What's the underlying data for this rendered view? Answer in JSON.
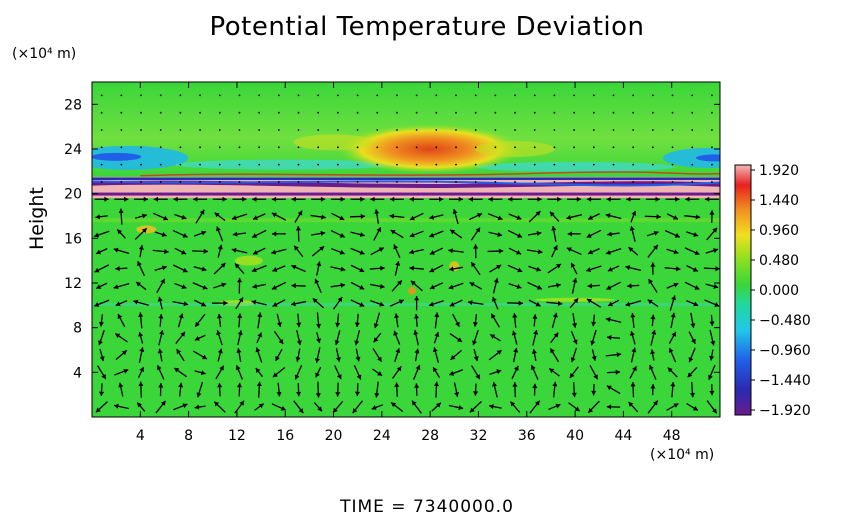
{
  "chart_data": {
    "type": "heatmap",
    "title": "Potential Temperature Deviation",
    "ylabel": "Height",
    "x_unit": "(×10⁴ m)",
    "y_unit": "(×10⁴ m)",
    "xlim": [
      0,
      52
    ],
    "ylim": [
      0,
      30
    ],
    "x_ticks": [
      "4",
      "8",
      "12",
      "16",
      "20",
      "24",
      "28",
      "32",
      "36",
      "40",
      "44",
      "48"
    ],
    "y_ticks": [
      "4",
      "8",
      "12",
      "16",
      "20",
      "24",
      "28"
    ],
    "colorbar": {
      "min": -1.92,
      "max": 1.92,
      "labels": [
        "1.920",
        "1.440",
        "0.960",
        "0.480",
        "0.000",
        "−0.480",
        "−0.960",
        "−1.440",
        "−1.920"
      ]
    },
    "features": [
      {
        "label": "warm anomaly",
        "x": [
          22,
          34
        ],
        "y": [
          22.5,
          25.5
        ],
        "value": 1.4
      },
      {
        "label": "cool band",
        "x": [
          0,
          52
        ],
        "y": [
          22,
          24
        ],
        "value": -0.9
      },
      {
        "label": "strong layer",
        "x": [
          0,
          52
        ],
        "y": [
          19.6,
          21.4
        ],
        "value": 1.9
      },
      {
        "label": "thin negative line",
        "x": [
          0,
          52
        ],
        "y": [
          20.8,
          21.0
        ],
        "value": -1.9
      },
      {
        "label": "low-level field",
        "x": [
          0,
          52
        ],
        "y": [
          0,
          19
        ],
        "value": 0.25
      }
    ],
    "vector_field": true
  },
  "footer": {
    "time_label": "TIME  =  7340000.0"
  },
  "colors": {
    "background_field": "#3ad63a",
    "warm": "#e8501c",
    "cool": "#20b8e8",
    "layer_pink": "#f0b4b4",
    "layer_purple": "#6a1c8c"
  }
}
